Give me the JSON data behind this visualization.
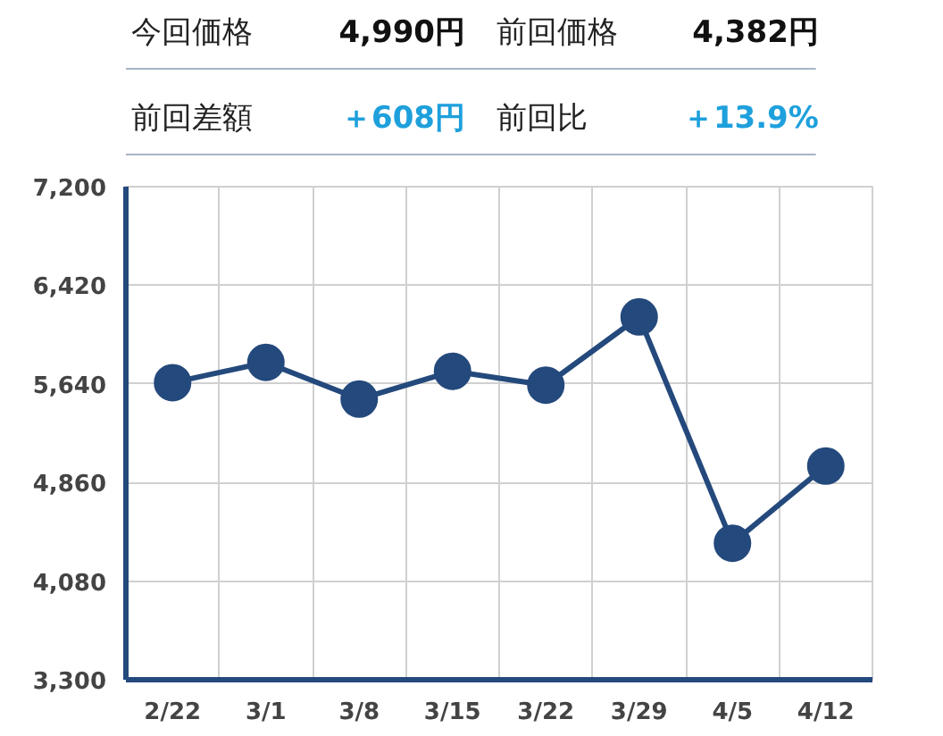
{
  "chart_data": [
    {
      "type": "other",
      "annotations": [
        "今回価格",
        "4,990円",
        "前回価格",
        "4,382円",
        "前回差額",
        "＋608円",
        "前回比",
        "＋13.9%"
      ]
    },
    {
      "type": "line",
      "categories": [
        "2/22",
        "3/1",
        "3/8",
        "3/15",
        "3/22",
        "3/29",
        "4/5",
        "4/12"
      ],
      "series": [
        {
          "color": "#24497c",
          "values": [
            5650,
            5810,
            5520,
            5740,
            5630,
            6170,
            4380,
            4990
          ]
        }
      ],
      "ylim": [
        3300,
        7200
      ],
      "yticks": [
        {
          "value": 3300,
          "label": "3,300"
        },
        {
          "value": 4080,
          "label": "4,080"
        },
        {
          "value": 4860,
          "label": "4,860"
        },
        {
          "value": 5640,
          "label": "5,640"
        },
        {
          "value": 6420,
          "label": "6,420"
        },
        {
          "value": 7200,
          "label": "7,200"
        }
      ],
      "grid": true,
      "marker": "circle",
      "line_style": "solid"
    }
  ]
}
